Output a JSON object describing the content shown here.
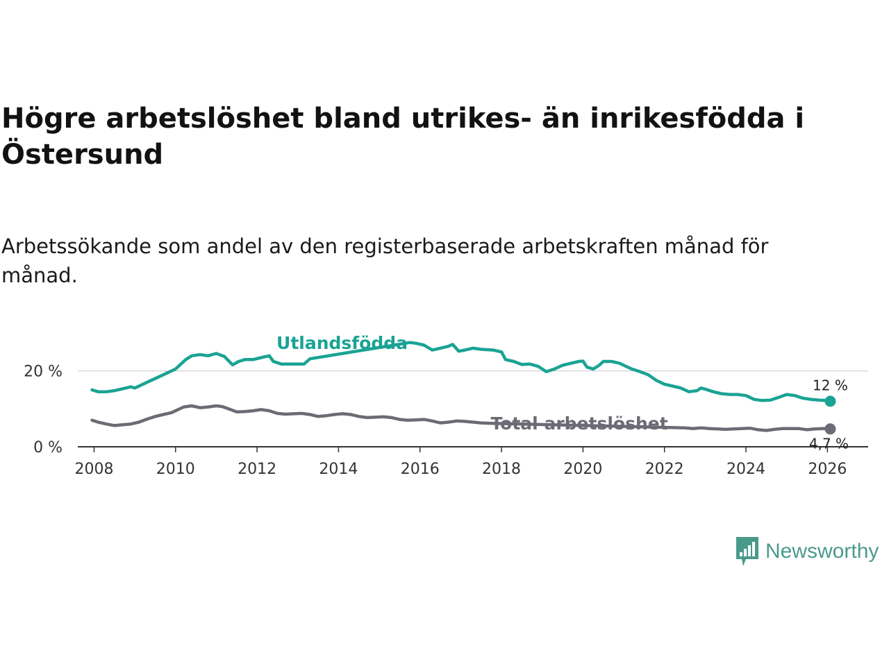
{
  "title": "Högre arbetslöshet bland utrikes- än inrikesfödda i Östersund",
  "subtitle": "Arbetssökande som andel av den registerbaserade arbetskraften månad för månad.",
  "brand": {
    "name": "Newsworthy",
    "icon": "newsworthy-logo-icon",
    "color": "#4a9a8c"
  },
  "chart_data": {
    "type": "line",
    "ylim": [
      0,
      30
    ],
    "xlim": [
      2007.6,
      2027.0
    ],
    "y_ticks": [
      {
        "value": 0,
        "label": "0 %"
      },
      {
        "value": 20,
        "label": "20 %"
      }
    ],
    "x_ticks": [
      {
        "value": 2008,
        "label": "2008"
      },
      {
        "value": 2010,
        "label": "2010"
      },
      {
        "value": 2012,
        "label": "2012"
      },
      {
        "value": 2014,
        "label": "2014"
      },
      {
        "value": 2016,
        "label": "2016"
      },
      {
        "value": 2018,
        "label": "2018"
      },
      {
        "value": 2020,
        "label": "2020"
      },
      {
        "value": 2022,
        "label": "2022"
      },
      {
        "value": 2024,
        "label": "2024"
      },
      {
        "value": 2026,
        "label": "2026"
      }
    ],
    "series": [
      {
        "name": "Utlandsfödda",
        "color": "#1aa394",
        "end_label": "12 %",
        "points": [
          [
            2007.95,
            15.0
          ],
          [
            2008.1,
            14.5
          ],
          [
            2008.3,
            14.5
          ],
          [
            2008.5,
            14.8
          ],
          [
            2008.7,
            15.3
          ],
          [
            2008.9,
            15.8
          ],
          [
            2009.0,
            15.5
          ],
          [
            2009.2,
            16.5
          ],
          [
            2009.4,
            17.5
          ],
          [
            2009.6,
            18.5
          ],
          [
            2009.8,
            19.5
          ],
          [
            2010.0,
            20.5
          ],
          [
            2010.1,
            21.5
          ],
          [
            2010.25,
            23.0
          ],
          [
            2010.4,
            24.0
          ],
          [
            2010.6,
            24.3
          ],
          [
            2010.8,
            24.0
          ],
          [
            2011.0,
            24.6
          ],
          [
            2011.2,
            23.8
          ],
          [
            2011.4,
            21.6
          ],
          [
            2011.55,
            22.5
          ],
          [
            2011.7,
            23.0
          ],
          [
            2011.9,
            23.0
          ],
          [
            2012.1,
            23.5
          ],
          [
            2012.3,
            24.0
          ],
          [
            2012.4,
            22.5
          ],
          [
            2012.6,
            21.8
          ],
          [
            2012.8,
            21.8
          ],
          [
            2013.0,
            21.8
          ],
          [
            2013.15,
            21.8
          ],
          [
            2013.3,
            23.2
          ],
          [
            2015.75,
            27.5
          ],
          [
            2015.9,
            27.3
          ],
          [
            2016.1,
            26.8
          ],
          [
            2016.3,
            25.5
          ],
          [
            2016.5,
            26.0
          ],
          [
            2016.7,
            26.5
          ],
          [
            2016.8,
            27.0
          ],
          [
            2016.95,
            25.2
          ],
          [
            2017.1,
            25.5
          ],
          [
            2017.3,
            26.0
          ],
          [
            2017.5,
            25.7
          ],
          [
            2017.8,
            25.5
          ],
          [
            2018.0,
            25.0
          ],
          [
            2018.1,
            23.0
          ],
          [
            2018.3,
            22.5
          ],
          [
            2018.5,
            21.7
          ],
          [
            2018.7,
            21.8
          ],
          [
            2018.9,
            21.2
          ],
          [
            2019.0,
            20.5
          ],
          [
            2019.1,
            19.8
          ],
          [
            2019.3,
            20.5
          ],
          [
            2019.5,
            21.5
          ],
          [
            2019.7,
            22.0
          ],
          [
            2019.9,
            22.5
          ],
          [
            2020.0,
            22.6
          ],
          [
            2020.1,
            21.0
          ],
          [
            2020.25,
            20.5
          ],
          [
            2020.4,
            21.5
          ],
          [
            2020.5,
            22.5
          ],
          [
            2020.7,
            22.5
          ],
          [
            2020.9,
            22.0
          ],
          [
            2021.0,
            21.5
          ],
          [
            2021.2,
            20.5
          ],
          [
            2021.4,
            19.8
          ],
          [
            2021.6,
            19.0
          ],
          [
            2021.8,
            17.5
          ],
          [
            2022.0,
            16.5
          ],
          [
            2022.2,
            16.0
          ],
          [
            2022.4,
            15.5
          ],
          [
            2022.6,
            14.5
          ],
          [
            2022.8,
            14.8
          ],
          [
            2022.9,
            15.5
          ],
          [
            2023.0,
            15.2
          ],
          [
            2023.2,
            14.5
          ],
          [
            2023.4,
            14.0
          ],
          [
            2023.6,
            13.8
          ],
          [
            2023.8,
            13.8
          ],
          [
            2024.0,
            13.5
          ],
          [
            2024.2,
            12.5
          ],
          [
            2024.4,
            12.2
          ],
          [
            2024.6,
            12.3
          ],
          [
            2024.8,
            13.0
          ],
          [
            2025.0,
            13.8
          ],
          [
            2025.2,
            13.5
          ],
          [
            2025.4,
            12.8
          ],
          [
            2025.6,
            12.5
          ],
          [
            2025.8,
            12.3
          ],
          [
            2026.0,
            12.2
          ],
          [
            2026.07,
            12.0
          ]
        ]
      },
      {
        "name": "Total arbetslöshet",
        "color": "#6b6b75",
        "end_label": "4,7 %",
        "points": [
          [
            2007.95,
            7.0
          ],
          [
            2008.1,
            6.5
          ],
          [
            2008.3,
            6.0
          ],
          [
            2008.5,
            5.6
          ],
          [
            2008.7,
            5.8
          ],
          [
            2008.9,
            6.0
          ],
          [
            2009.1,
            6.5
          ],
          [
            2009.3,
            7.3
          ],
          [
            2009.5,
            8.0
          ],
          [
            2009.7,
            8.5
          ],
          [
            2009.9,
            9.0
          ],
          [
            2010.0,
            9.5
          ],
          [
            2010.2,
            10.5
          ],
          [
            2010.4,
            10.8
          ],
          [
            2010.6,
            10.3
          ],
          [
            2010.8,
            10.5
          ],
          [
            2011.0,
            10.8
          ],
          [
            2011.15,
            10.6
          ],
          [
            2011.3,
            10.0
          ],
          [
            2011.5,
            9.2
          ],
          [
            2011.7,
            9.3
          ],
          [
            2011.9,
            9.5
          ],
          [
            2012.1,
            9.8
          ],
          [
            2012.3,
            9.5
          ],
          [
            2012.5,
            8.8
          ],
          [
            2012.7,
            8.6
          ],
          [
            2012.9,
            8.7
          ],
          [
            2013.1,
            8.8
          ],
          [
            2013.3,
            8.5
          ],
          [
            2013.5,
            8.0
          ],
          [
            2013.7,
            8.2
          ],
          [
            2013.9,
            8.5
          ],
          [
            2014.1,
            8.7
          ],
          [
            2014.3,
            8.5
          ],
          [
            2014.5,
            8.0
          ],
          [
            2014.7,
            7.7
          ],
          [
            2014.9,
            7.8
          ],
          [
            2015.1,
            7.9
          ],
          [
            2015.3,
            7.7
          ],
          [
            2015.5,
            7.2
          ],
          [
            2015.7,
            7.0
          ],
          [
            2015.9,
            7.1
          ],
          [
            2016.1,
            7.2
          ],
          [
            2016.3,
            6.8
          ],
          [
            2016.5,
            6.3
          ],
          [
            2016.7,
            6.5
          ],
          [
            2016.9,
            6.8
          ],
          [
            2017.1,
            6.7
          ],
          [
            2017.3,
            6.5
          ],
          [
            2017.5,
            6.3
          ],
          [
            2017.7,
            6.2
          ],
          [
            2022.5,
            5.0
          ],
          [
            2022.7,
            4.8
          ],
          [
            2022.9,
            5.0
          ],
          [
            2023.1,
            4.8
          ],
          [
            2023.3,
            4.7
          ],
          [
            2023.5,
            4.6
          ],
          [
            2023.7,
            4.7
          ],
          [
            2023.9,
            4.8
          ],
          [
            2024.1,
            4.9
          ],
          [
            2024.3,
            4.5
          ],
          [
            2024.5,
            4.3
          ],
          [
            2024.7,
            4.6
          ],
          [
            2024.9,
            4.8
          ],
          [
            2025.1,
            4.8
          ],
          [
            2025.3,
            4.8
          ],
          [
            2025.5,
            4.5
          ],
          [
            2025.7,
            4.7
          ],
          [
            2025.9,
            4.8
          ],
          [
            2026.07,
            4.7
          ]
        ]
      }
    ]
  }
}
